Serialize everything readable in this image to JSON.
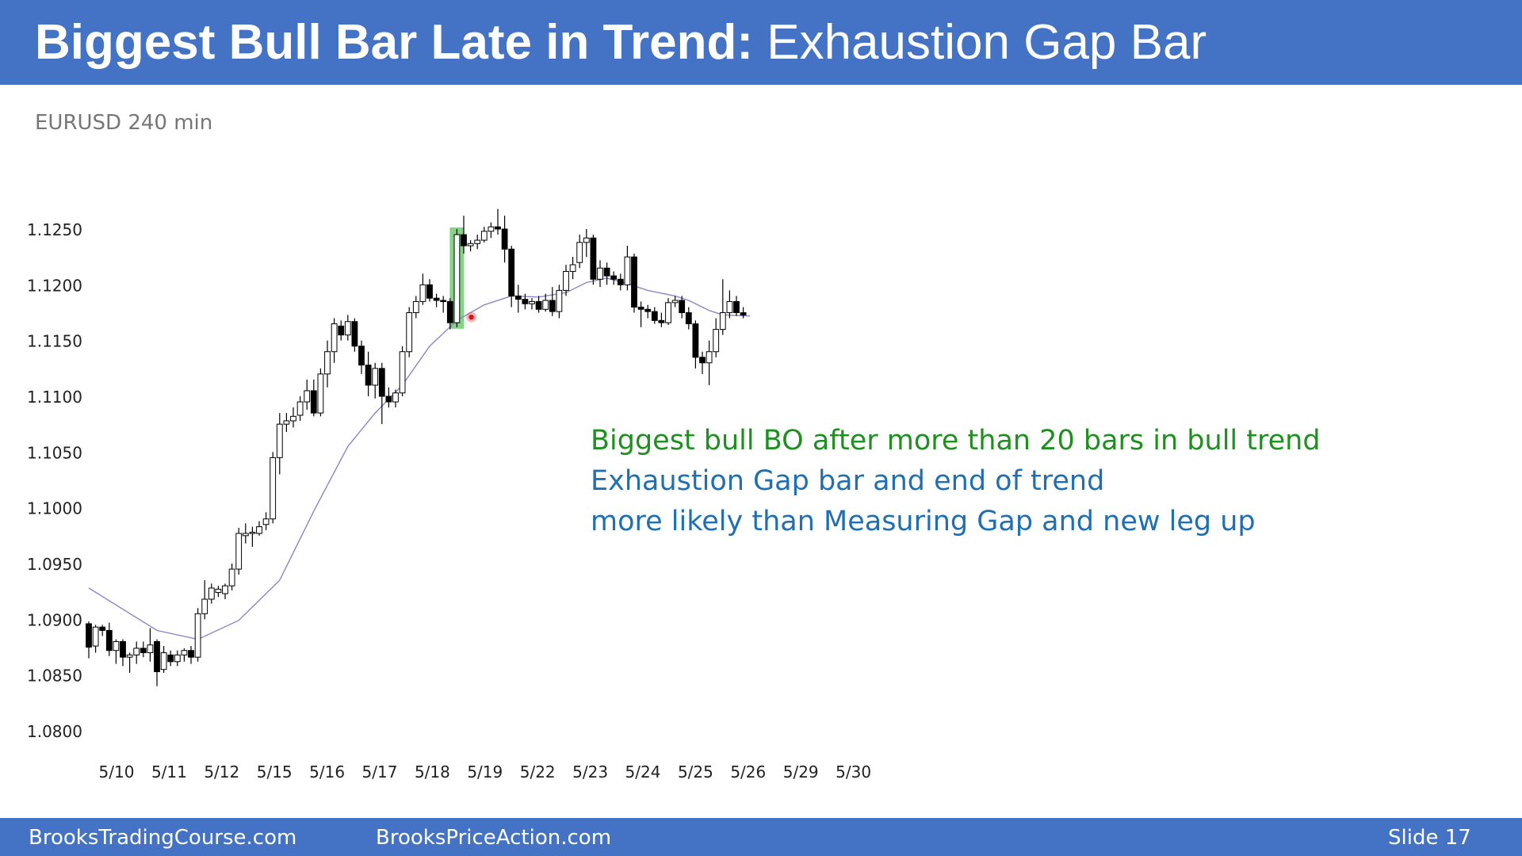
{
  "header": {
    "title_bold": "Biggest Bull Bar Late in Trend:",
    "title_rest": " Exhaustion Gap Bar"
  },
  "chart_label": "EURUSD 240 min",
  "chart_data": {
    "type": "candlestick",
    "symbol": "EURUSD",
    "timeframe": "240 min",
    "ylim": [
      1.08,
      1.127
    ],
    "y_ticks": [
      "1.1250",
      "1.1200",
      "1.1150",
      "1.1100",
      "1.1050",
      "1.1000",
      "1.0950",
      "1.0900",
      "1.0850",
      "1.0800"
    ],
    "x_ticks": [
      "5/10",
      "5/11",
      "5/12",
      "5/15",
      "5/16",
      "5/17",
      "5/18",
      "5/19",
      "5/22",
      "5/23",
      "5/24",
      "5/25",
      "5/26",
      "5/29",
      "5/30"
    ],
    "grid": false,
    "bars": [
      {
        "o": 1.0896,
        "h": 1.0898,
        "l": 1.0865,
        "c": 1.0875
      },
      {
        "o": 1.0876,
        "h": 1.0895,
        "l": 1.087,
        "c": 1.0893
      },
      {
        "o": 1.0893,
        "h": 1.0895,
        "l": 1.0885,
        "c": 1.089
      },
      {
        "o": 1.089,
        "h": 1.0897,
        "l": 1.0867,
        "c": 1.0872
      },
      {
        "o": 1.0872,
        "h": 1.0882,
        "l": 1.086,
        "c": 1.088
      },
      {
        "o": 1.088,
        "h": 1.0882,
        "l": 1.0858,
        "c": 1.0866
      },
      {
        "o": 1.0866,
        "h": 1.087,
        "l": 1.0852,
        "c": 1.0868
      },
      {
        "o": 1.0868,
        "h": 1.088,
        "l": 1.086,
        "c": 1.0874
      },
      {
        "o": 1.0874,
        "h": 1.088,
        "l": 1.0866,
        "c": 1.087
      },
      {
        "o": 1.087,
        "h": 1.0892,
        "l": 1.0862,
        "c": 1.0877
      },
      {
        "o": 1.088,
        "h": 1.0882,
        "l": 1.084,
        "c": 1.0853
      },
      {
        "o": 1.0855,
        "h": 1.0876,
        "l": 1.0852,
        "c": 1.087
      },
      {
        "o": 1.0868,
        "h": 1.0872,
        "l": 1.0858,
        "c": 1.0862
      },
      {
        "o": 1.0862,
        "h": 1.0872,
        "l": 1.0858,
        "c": 1.0868
      },
      {
        "o": 1.0868,
        "h": 1.0874,
        "l": 1.0862,
        "c": 1.0872
      },
      {
        "o": 1.0872,
        "h": 1.0876,
        "l": 1.086,
        "c": 1.0866
      },
      {
        "o": 1.0866,
        "h": 1.091,
        "l": 1.0862,
        "c": 1.0905
      },
      {
        "o": 1.0905,
        "h": 1.0935,
        "l": 1.09,
        "c": 1.0918
      },
      {
        "o": 1.0918,
        "h": 1.0932,
        "l": 1.0914,
        "c": 1.0928
      },
      {
        "o": 1.0924,
        "h": 1.093,
        "l": 1.092,
        "c": 1.0927
      },
      {
        "o": 1.0923,
        "h": 1.0932,
        "l": 1.0918,
        "c": 1.093
      },
      {
        "o": 1.093,
        "h": 1.095,
        "l": 1.0926,
        "c": 1.0945
      },
      {
        "o": 1.0945,
        "h": 1.0982,
        "l": 1.094,
        "c": 1.0977
      },
      {
        "o": 1.0975,
        "h": 1.0986,
        "l": 1.0968,
        "c": 1.0977
      },
      {
        "o": 1.0977,
        "h": 1.0983,
        "l": 1.0965,
        "c": 1.0978
      },
      {
        "o": 1.0977,
        "h": 1.0988,
        "l": 1.0975,
        "c": 1.0983
      },
      {
        "o": 1.0985,
        "h": 1.0996,
        "l": 1.098,
        "c": 1.099
      },
      {
        "o": 1.099,
        "h": 1.105,
        "l": 1.0986,
        "c": 1.1045
      },
      {
        "o": 1.1045,
        "h": 1.1085,
        "l": 1.103,
        "c": 1.1075
      },
      {
        "o": 1.1075,
        "h": 1.1085,
        "l": 1.1068,
        "c": 1.1078
      },
      {
        "o": 1.1078,
        "h": 1.109,
        "l": 1.1072,
        "c": 1.1082
      },
      {
        "o": 1.1083,
        "h": 1.11,
        "l": 1.1078,
        "c": 1.1095
      },
      {
        "o": 1.1095,
        "h": 1.1115,
        "l": 1.1088,
        "c": 1.1105
      },
      {
        "o": 1.1105,
        "h": 1.1115,
        "l": 1.1082,
        "c": 1.1085
      },
      {
        "o": 1.1085,
        "h": 1.1125,
        "l": 1.1082,
        "c": 1.112
      },
      {
        "o": 1.112,
        "h": 1.115,
        "l": 1.1108,
        "c": 1.114
      },
      {
        "o": 1.114,
        "h": 1.117,
        "l": 1.113,
        "c": 1.1165
      },
      {
        "o": 1.1163,
        "h": 1.1168,
        "l": 1.115,
        "c": 1.1155
      },
      {
        "o": 1.1155,
        "h": 1.1173,
        "l": 1.115,
        "c": 1.1167
      },
      {
        "o": 1.1167,
        "h": 1.117,
        "l": 1.114,
        "c": 1.1145
      },
      {
        "o": 1.1145,
        "h": 1.115,
        "l": 1.112,
        "c": 1.1128
      },
      {
        "o": 1.1128,
        "h": 1.114,
        "l": 1.11,
        "c": 1.111
      },
      {
        "o": 1.111,
        "h": 1.113,
        "l": 1.1098,
        "c": 1.1125
      },
      {
        "o": 1.1125,
        "h": 1.113,
        "l": 1.1075,
        "c": 1.11
      },
      {
        "o": 1.11,
        "h": 1.1108,
        "l": 1.109,
        "c": 1.1095
      },
      {
        "o": 1.1095,
        "h": 1.1106,
        "l": 1.109,
        "c": 1.1103
      },
      {
        "o": 1.1103,
        "h": 1.1145,
        "l": 1.11,
        "c": 1.114
      },
      {
        "o": 1.114,
        "h": 1.118,
        "l": 1.1135,
        "c": 1.1175
      },
      {
        "o": 1.1175,
        "h": 1.119,
        "l": 1.117,
        "c": 1.1185
      },
      {
        "o": 1.1185,
        "h": 1.121,
        "l": 1.1182,
        "c": 1.12
      },
      {
        "o": 1.12,
        "h": 1.1205,
        "l": 1.1185,
        "c": 1.1188
      },
      {
        "o": 1.1188,
        "h": 1.1192,
        "l": 1.118,
        "c": 1.1186
      },
      {
        "o": 1.1186,
        "h": 1.119,
        "l": 1.1175,
        "c": 1.1185
      },
      {
        "o": 1.1185,
        "h": 1.1188,
        "l": 1.116,
        "c": 1.1166
      },
      {
        "o": 1.1166,
        "h": 1.125,
        "l": 1.1162,
        "c": 1.1245
      },
      {
        "o": 1.1245,
        "h": 1.1262,
        "l": 1.1228,
        "c": 1.1235
      },
      {
        "o": 1.1235,
        "h": 1.124,
        "l": 1.123,
        "c": 1.1237
      },
      {
        "o": 1.1237,
        "h": 1.1245,
        "l": 1.1232,
        "c": 1.124
      },
      {
        "o": 1.124,
        "h": 1.1252,
        "l": 1.1238,
        "c": 1.1248
      },
      {
        "o": 1.1248,
        "h": 1.1256,
        "l": 1.1242,
        "c": 1.1252
      },
      {
        "o": 1.1252,
        "h": 1.1268,
        "l": 1.1245,
        "c": 1.125
      },
      {
        "o": 1.125,
        "h": 1.1262,
        "l": 1.122,
        "c": 1.1232
      },
      {
        "o": 1.1232,
        "h": 1.1235,
        "l": 1.118,
        "c": 1.119
      },
      {
        "o": 1.119,
        "h": 1.12,
        "l": 1.1175,
        "c": 1.1187
      },
      {
        "o": 1.1187,
        "h": 1.1192,
        "l": 1.1178,
        "c": 1.1183
      },
      {
        "o": 1.1183,
        "h": 1.1188,
        "l": 1.1178,
        "c": 1.1185
      },
      {
        "o": 1.1185,
        "h": 1.119,
        "l": 1.1175,
        "c": 1.1178
      },
      {
        "o": 1.1178,
        "h": 1.1192,
        "l": 1.1176,
        "c": 1.1186
      },
      {
        "o": 1.1186,
        "h": 1.1198,
        "l": 1.1172,
        "c": 1.1176
      },
      {
        "o": 1.1176,
        "h": 1.12,
        "l": 1.117,
        "c": 1.1195
      },
      {
        "o": 1.1195,
        "h": 1.1218,
        "l": 1.119,
        "c": 1.1212
      },
      {
        "o": 1.1212,
        "h": 1.1225,
        "l": 1.1205,
        "c": 1.1218
      },
      {
        "o": 1.122,
        "h": 1.1245,
        "l": 1.1215,
        "c": 1.1238
      },
      {
        "o": 1.1238,
        "h": 1.125,
        "l": 1.1225,
        "c": 1.1242
      },
      {
        "o": 1.1242,
        "h": 1.1245,
        "l": 1.12,
        "c": 1.1205
      },
      {
        "o": 1.1205,
        "h": 1.1222,
        "l": 1.1198,
        "c": 1.1215
      },
      {
        "o": 1.1215,
        "h": 1.122,
        "l": 1.12,
        "c": 1.1208
      },
      {
        "o": 1.1208,
        "h": 1.1212,
        "l": 1.12,
        "c": 1.1205
      },
      {
        "o": 1.1205,
        "h": 1.121,
        "l": 1.1195,
        "c": 1.12
      },
      {
        "o": 1.12,
        "h": 1.1235,
        "l": 1.1195,
        "c": 1.1225
      },
      {
        "o": 1.1225,
        "h": 1.1228,
        "l": 1.1175,
        "c": 1.118
      },
      {
        "o": 1.118,
        "h": 1.1185,
        "l": 1.1162,
        "c": 1.1178
      },
      {
        "o": 1.1178,
        "h": 1.1182,
        "l": 1.117,
        "c": 1.1176
      },
      {
        "o": 1.1176,
        "h": 1.118,
        "l": 1.1165,
        "c": 1.1168
      },
      {
        "o": 1.1168,
        "h": 1.1175,
        "l": 1.1162,
        "c": 1.1166
      },
      {
        "o": 1.1166,
        "h": 1.1188,
        "l": 1.1164,
        "c": 1.1184
      },
      {
        "o": 1.1184,
        "h": 1.119,
        "l": 1.118,
        "c": 1.1186
      },
      {
        "o": 1.1186,
        "h": 1.119,
        "l": 1.117,
        "c": 1.1175
      },
      {
        "o": 1.1175,
        "h": 1.118,
        "l": 1.116,
        "c": 1.1165
      },
      {
        "o": 1.1165,
        "h": 1.1168,
        "l": 1.1125,
        "c": 1.1135
      },
      {
        "o": 1.1135,
        "h": 1.114,
        "l": 1.112,
        "c": 1.113
      },
      {
        "o": 1.113,
        "h": 1.115,
        "l": 1.111,
        "c": 1.114
      },
      {
        "o": 1.114,
        "h": 1.117,
        "l": 1.1135,
        "c": 1.116
      },
      {
        "o": 1.116,
        "h": 1.1205,
        "l": 1.1155,
        "c": 1.1175
      },
      {
        "o": 1.1175,
        "h": 1.1195,
        "l": 1.117,
        "c": 1.1185
      },
      {
        "o": 1.1185,
        "h": 1.119,
        "l": 1.1172,
        "c": 1.1175
      },
      {
        "o": 1.1175,
        "h": 1.118,
        "l": 1.117,
        "c": 1.1173
      }
    ],
    "moving_average": [
      [
        0,
        1.0928
      ],
      [
        10,
        1.089
      ],
      [
        16,
        1.0882
      ],
      [
        22,
        1.0899
      ],
      [
        28,
        1.0935
      ],
      [
        33,
        1.0997
      ],
      [
        38,
        1.1055
      ],
      [
        42,
        1.1085
      ],
      [
        46,
        1.111
      ],
      [
        50,
        1.1145
      ],
      [
        54,
        1.1168
      ],
      [
        58,
        1.1182
      ],
      [
        62,
        1.119
      ],
      [
        66,
        1.1189
      ],
      [
        70,
        1.1193
      ],
      [
        73,
        1.1202
      ],
      [
        76,
        1.1206
      ],
      [
        79,
        1.1201
      ],
      [
        82,
        1.1195
      ],
      [
        86,
        1.119
      ],
      [
        88,
        1.1186
      ],
      [
        91,
        1.1177
      ],
      [
        93,
        1.1173
      ],
      [
        97,
        1.1172
      ]
    ],
    "highlight_bar_index": 54,
    "marker": {
      "bar_index": 56,
      "price": 1.1171
    },
    "colors": {
      "bull_body": "#ffffff",
      "bear_body": "#000000",
      "wick": "#000000",
      "ma_line": "#8a86c8",
      "highlight": "#5cc65c",
      "marker": "#e01010"
    }
  },
  "annotations": {
    "line1": "Biggest bull BO after more than 20 bars in bull trend",
    "line2": "Exhaustion Gap bar and end of trend",
    "line3": "more likely than Measuring Gap and new leg up"
  },
  "footer": {
    "left": "BrooksTradingCourse.com",
    "middle": "BrooksPriceAction.com",
    "right": "Slide  17"
  },
  "colors": {
    "header_bg": "#4472c4",
    "footer_bg": "#4472c4",
    "green_text": "#1f8f1f",
    "blue_text": "#1f6fb2"
  }
}
